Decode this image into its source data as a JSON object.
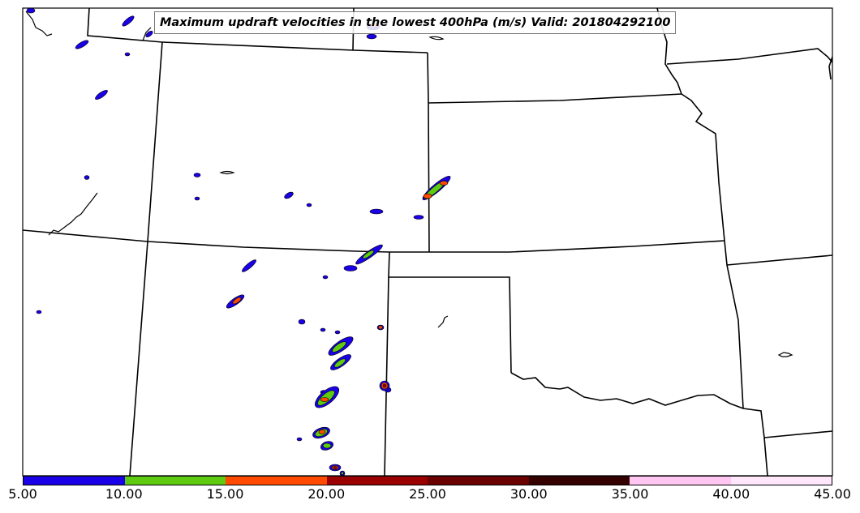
{
  "title": "Maximum updraft velocities in the lowest 400hPa (m/s) Valid: 201804292100",
  "colorbar": {
    "tick_labels": [
      "5.00",
      "10.00",
      "15.00",
      "20.00",
      "25.00",
      "30.00",
      "35.00",
      "40.00",
      "45.00"
    ],
    "bins": [
      {
        "range": [
          5,
          10
        ],
        "color": "#1a00e6"
      },
      {
        "range": [
          10,
          15
        ],
        "color": "#5ecb10"
      },
      {
        "range": [
          15,
          20
        ],
        "color": "#ff4a00"
      },
      {
        "range": [
          20,
          25
        ],
        "color": "#9a0000"
      },
      {
        "range": [
          25,
          30
        ],
        "color": "#6a0000"
      },
      {
        "range": [
          30,
          35
        ],
        "color": "#350000"
      },
      {
        "range": [
          35,
          40
        ],
        "color": "#ffc6f2"
      },
      {
        "range": [
          40,
          45
        ],
        "color": "#ffe6fa"
      }
    ]
  },
  "colors": {
    "low": "#1a00e6",
    "mid": "#5ecb10",
    "high": "#ff4a00",
    "very_high": "#9a0000",
    "boundaries": "#000000"
  }
}
